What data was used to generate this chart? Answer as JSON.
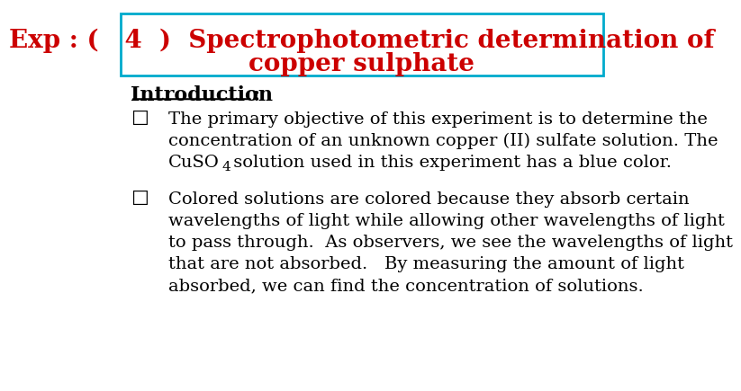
{
  "title_line1": "Exp : (   4  )  Spectrophotometric determination of",
  "title_line2": "copper sulphate",
  "title_color": "#cc0000",
  "border_color": "#00aacc",
  "bg_color": "#ffffff",
  "intro_label": "Introduction",
  "intro_colon": ":",
  "bullet1_lines": [
    "The primary objective of this experiment is to determine the",
    "concentration of an unknown copper (II) sulfate solution. The",
    "CuSO"
  ],
  "bullet1_sub": "4",
  "bullet1_line3_rest": " solution used in this experiment has a blue color.",
  "bullet2_lines": [
    "Colored solutions are colored because they absorb certain",
    "wavelengths of light while allowing other wavelengths of light",
    "to pass through.  As observers, we see the wavelengths of light",
    "that are not absorbed.   By measuring the amount of light",
    "absorbed, we can find the concentration of solutions."
  ],
  "font_size_title": 20,
  "font_size_body": 14,
  "font_size_intro": 16
}
